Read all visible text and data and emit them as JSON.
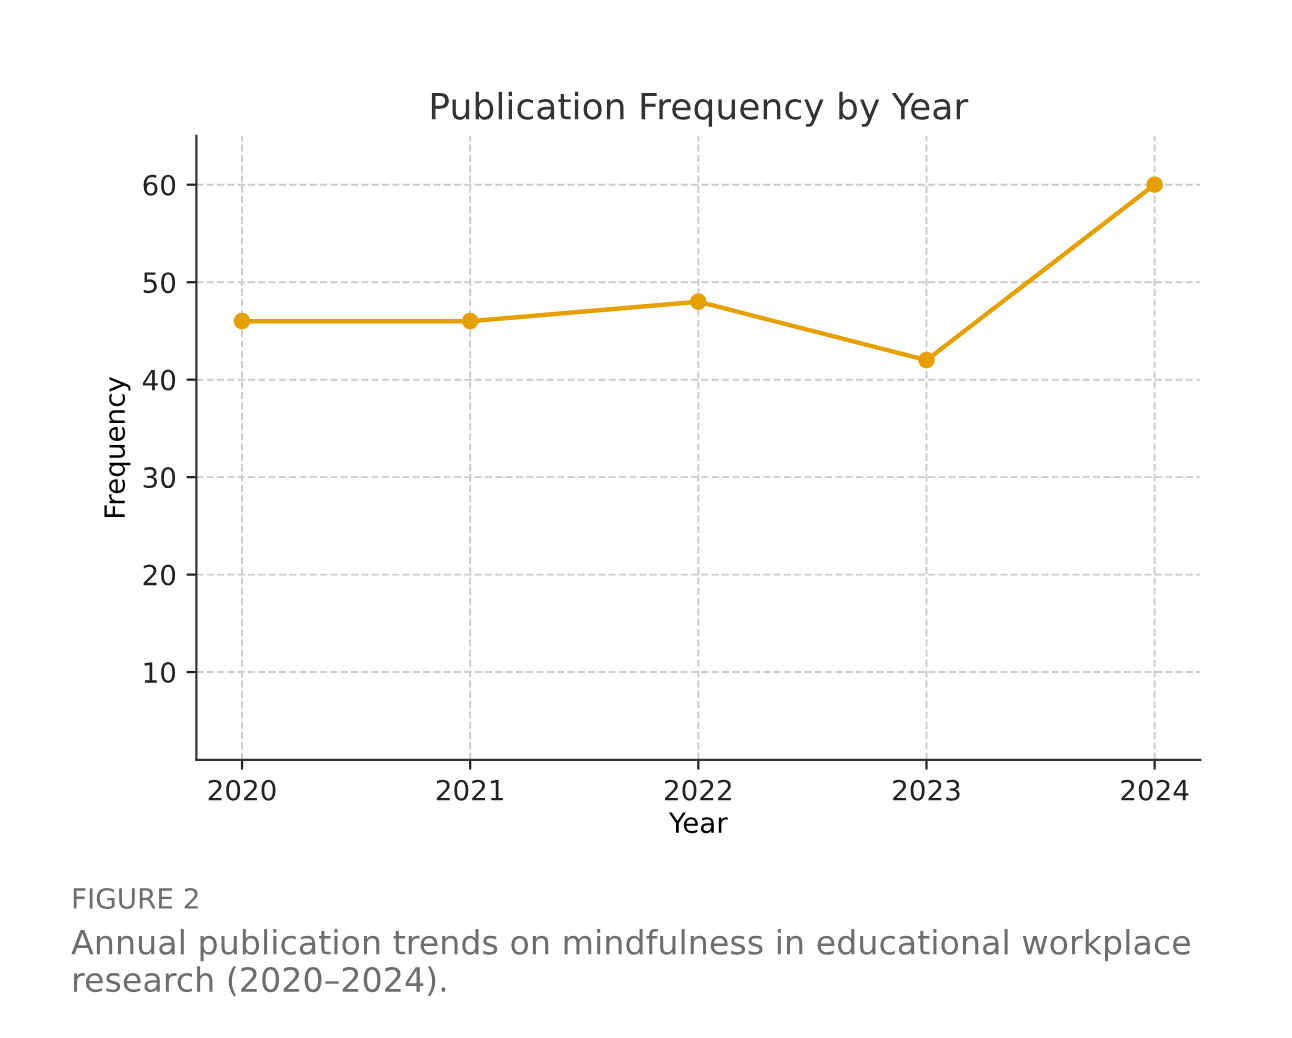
{
  "chart_data": {
    "type": "line",
    "title": "Publication Frequency by Year",
    "xlabel": "Year",
    "ylabel": "Frequency",
    "x": [
      2020,
      2021,
      2022,
      2023,
      2024
    ],
    "series": [
      {
        "color": "#e69f00",
        "values": [
          46,
          46,
          48,
          42,
          60
        ]
      }
    ],
    "xlim": [
      2019.8,
      2024.2
    ],
    "xticks": [
      2020,
      2021,
      2022,
      2023,
      2024
    ],
    "ylim": [
      1,
      65
    ],
    "yticks": [
      10,
      20,
      30,
      40,
      50,
      60
    ],
    "grid": true,
    "marker": "circle",
    "line_style": "solid",
    "annotations": [
      "FIGURE 2",
      "Annual publication trends on mindfulness in educational workplace research (2020–2024)."
    ]
  }
}
